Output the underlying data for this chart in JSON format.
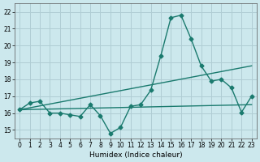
{
  "xlabel": "Humidex (Indice chaleur)",
  "bg_color": "#cce8ed",
  "line_color": "#1a7a6e",
  "grid_color": "#b0cdd4",
  "xlim": [
    -0.5,
    23.5
  ],
  "ylim": [
    14.5,
    22.5
  ],
  "yticks": [
    15,
    16,
    17,
    18,
    19,
    20,
    21,
    22
  ],
  "xticks": [
    0,
    1,
    2,
    3,
    4,
    5,
    6,
    7,
    8,
    9,
    10,
    11,
    12,
    13,
    14,
    15,
    16,
    17,
    18,
    19,
    20,
    21,
    22,
    23
  ],
  "line_data_x": [
    0,
    1,
    2,
    3,
    4,
    5,
    6,
    7,
    8,
    9,
    10,
    11,
    12,
    13,
    14,
    15,
    16,
    17,
    18,
    19,
    20,
    21,
    22,
    23
  ],
  "line_data_y": [
    16.2,
    16.6,
    16.7,
    16.0,
    16.0,
    15.9,
    15.8,
    16.5,
    15.85,
    14.8,
    15.15,
    16.4,
    16.5,
    17.35,
    19.4,
    21.65,
    21.8,
    20.4,
    18.8,
    17.9,
    18.0,
    17.5,
    16.05,
    17.0
  ],
  "line_trend1_x": [
    0,
    23
  ],
  "line_trend1_y": [
    16.2,
    16.5
  ],
  "line_trend2_x": [
    0,
    23
  ],
  "line_trend2_y": [
    16.2,
    18.8
  ],
  "marker": "D",
  "markersize": 2.5,
  "linewidth": 1.0
}
